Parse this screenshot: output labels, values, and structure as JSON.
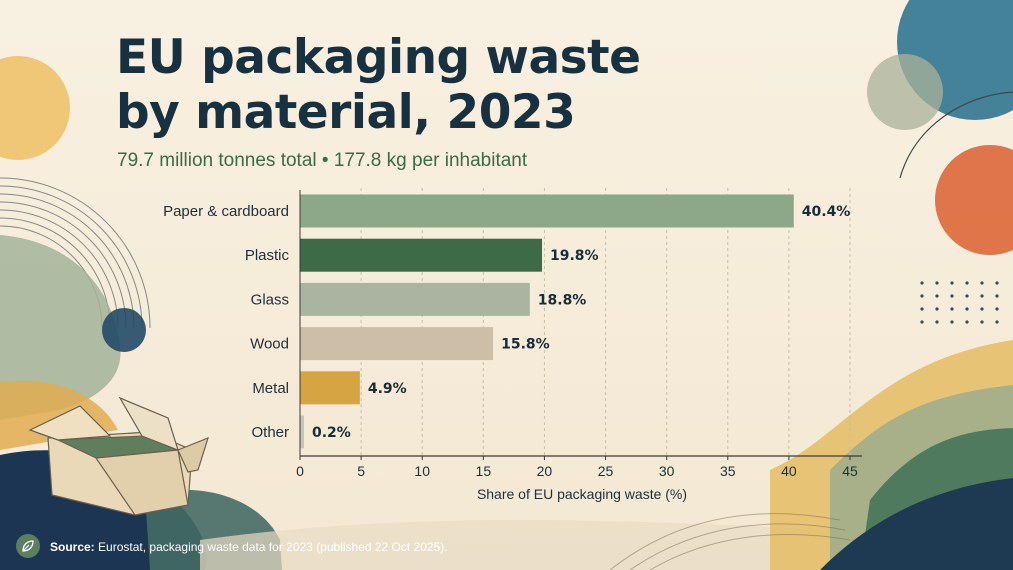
{
  "title_lines": [
    "EU packaging waste",
    "by material, 2023"
  ],
  "subtitle": "79.7 million tonnes total • 177.8 kg per inhabitant",
  "source": {
    "label": "Source:",
    "text": "Eurostat, packaging waste data for 2023 (published 22 Oct 2025)."
  },
  "icons": {
    "source_badge": "leaf-icon",
    "illustration": "cardboard-box-icon"
  },
  "chart_data": {
    "type": "bar",
    "orientation": "horizontal",
    "title": "EU packaging waste by material, 2023",
    "subtitle": "79.7 million tonnes total • 177.8 kg per inhabitant",
    "categories": [
      "Paper & cardboard",
      "Plastic",
      "Glass",
      "Wood",
      "Metal",
      "Other"
    ],
    "values": [
      40.4,
      19.8,
      18.8,
      15.8,
      4.9,
      0.2
    ],
    "value_labels": [
      "40.4%",
      "19.8%",
      "18.8%",
      "15.8%",
      "4.9%",
      "0.2%"
    ],
    "colors": [
      "#8da888",
      "#3d6b47",
      "#a9b5a0",
      "#cdbfa7",
      "#d7a443",
      "#c9c4bb"
    ],
    "xlabel": "Share of EU packaging waste (%)",
    "ylabel": "",
    "xlim": [
      0,
      45
    ],
    "xticks": [
      0,
      5,
      10,
      15,
      20,
      25,
      30,
      35,
      40,
      45
    ],
    "grid": "vertical dashed",
    "legend": "none"
  }
}
